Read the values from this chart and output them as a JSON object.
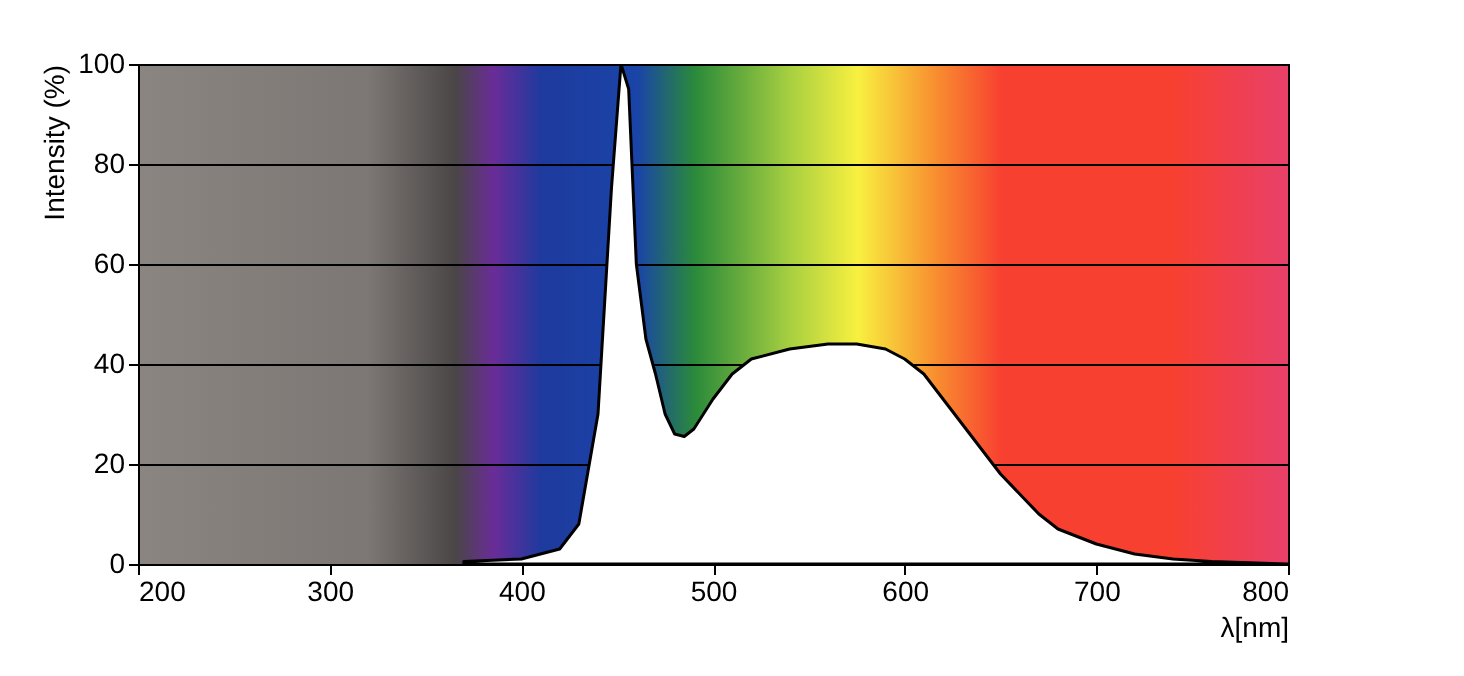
{
  "chart_data": {
    "type": "area",
    "xlabel": "λ[nm]",
    "ylabel": "Intensity (%)",
    "xlim": [
      200,
      800
    ],
    "xticks": [
      200,
      300,
      400,
      500,
      600,
      700,
      800
    ],
    "ylim": [
      0,
      100
    ],
    "yticks": [
      0,
      20,
      40,
      60,
      80,
      100
    ],
    "grid": "y",
    "x": [
      370,
      400,
      420,
      430,
      440,
      447,
      452,
      456,
      460,
      465,
      470,
      475,
      480,
      485,
      490,
      500,
      510,
      520,
      540,
      560,
      575,
      590,
      600,
      610,
      620,
      630,
      640,
      650,
      660,
      670,
      680,
      700,
      720,
      740,
      760,
      800
    ],
    "series": [
      {
        "color": "#ffffff",
        "values": [
          0.5,
          1,
          3,
          8,
          30,
          75,
          100,
          95,
          60,
          45,
          38,
          30,
          26,
          25.5,
          27,
          33,
          38,
          41,
          43,
          44,
          44,
          43,
          41,
          38,
          33,
          28,
          23,
          18,
          14,
          10,
          7,
          4,
          2,
          1,
          0.5,
          0
        ]
      }
    ]
  }
}
